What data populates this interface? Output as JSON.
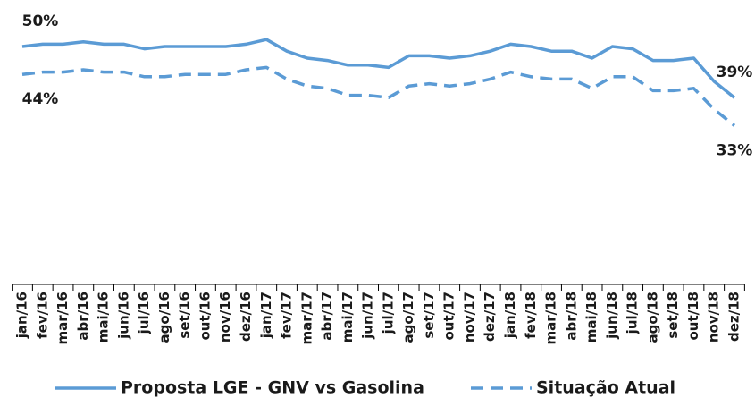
{
  "chart_data": {
    "type": "line",
    "categories": [
      "jan/16",
      "fev/16",
      "mar/16",
      "abr/16",
      "mai/16",
      "jun/16",
      "jul/16",
      "ago/16",
      "set/16",
      "out/16",
      "nov/16",
      "dez/16",
      "jan/17",
      "fev/17",
      "mar/17",
      "abr/17",
      "mai/17",
      "jun/17",
      "jul/17",
      "ago/17",
      "set/17",
      "out/17",
      "nov/17",
      "dez/17",
      "jan/18",
      "fev/18",
      "mar/18",
      "abr/18",
      "mai/18",
      "jun/18",
      "jul/18",
      "ago/18",
      "set/18",
      "out/18",
      "nov/18",
      "dez/18"
    ],
    "series": [
      {
        "name": "Proposta LGE - GNV vs Gasolina",
        "color": "#5b9bd5",
        "style": "solid",
        "values": [
          50,
          50.5,
          50.5,
          51,
          50.5,
          50.5,
          49.5,
          50,
          50,
          50,
          50,
          50.5,
          51.5,
          49,
          47.5,
          47,
          46,
          46,
          45.5,
          48,
          48,
          47.5,
          48,
          49,
          50.5,
          50,
          49,
          49,
          47.5,
          50,
          49.5,
          47,
          47,
          47.5,
          42.5,
          39
        ],
        "value_labels": [
          "50%",
          null,
          null,
          null,
          null,
          null,
          null,
          null,
          null,
          null,
          null,
          null,
          null,
          null,
          null,
          null,
          null,
          null,
          null,
          null,
          null,
          null,
          null,
          null,
          null,
          null,
          null,
          null,
          null,
          null,
          null,
          null,
          null,
          null,
          null,
          "39%"
        ]
      },
      {
        "name": "Situação Atual",
        "color": "#5b9bd5",
        "style": "dashed",
        "values": [
          44,
          44.5,
          44.5,
          45,
          44.5,
          44.5,
          43.5,
          43.5,
          44,
          44,
          44,
          45,
          45.5,
          43,
          41.5,
          41,
          39.5,
          39.5,
          39,
          41.5,
          42,
          41.5,
          42,
          43,
          44.5,
          43.5,
          43,
          43,
          41,
          43.5,
          43.5,
          40.5,
          40.5,
          41,
          36.5,
          33
        ],
        "value_labels": [
          "44%",
          null,
          null,
          null,
          null,
          null,
          null,
          null,
          null,
          null,
          null,
          null,
          null,
          null,
          null,
          null,
          null,
          null,
          null,
          null,
          null,
          null,
          null,
          null,
          null,
          null,
          null,
          null,
          null,
          null,
          null,
          null,
          null,
          null,
          null,
          "33%"
        ]
      }
    ],
    "ylim": [
      0,
      55
    ]
  }
}
